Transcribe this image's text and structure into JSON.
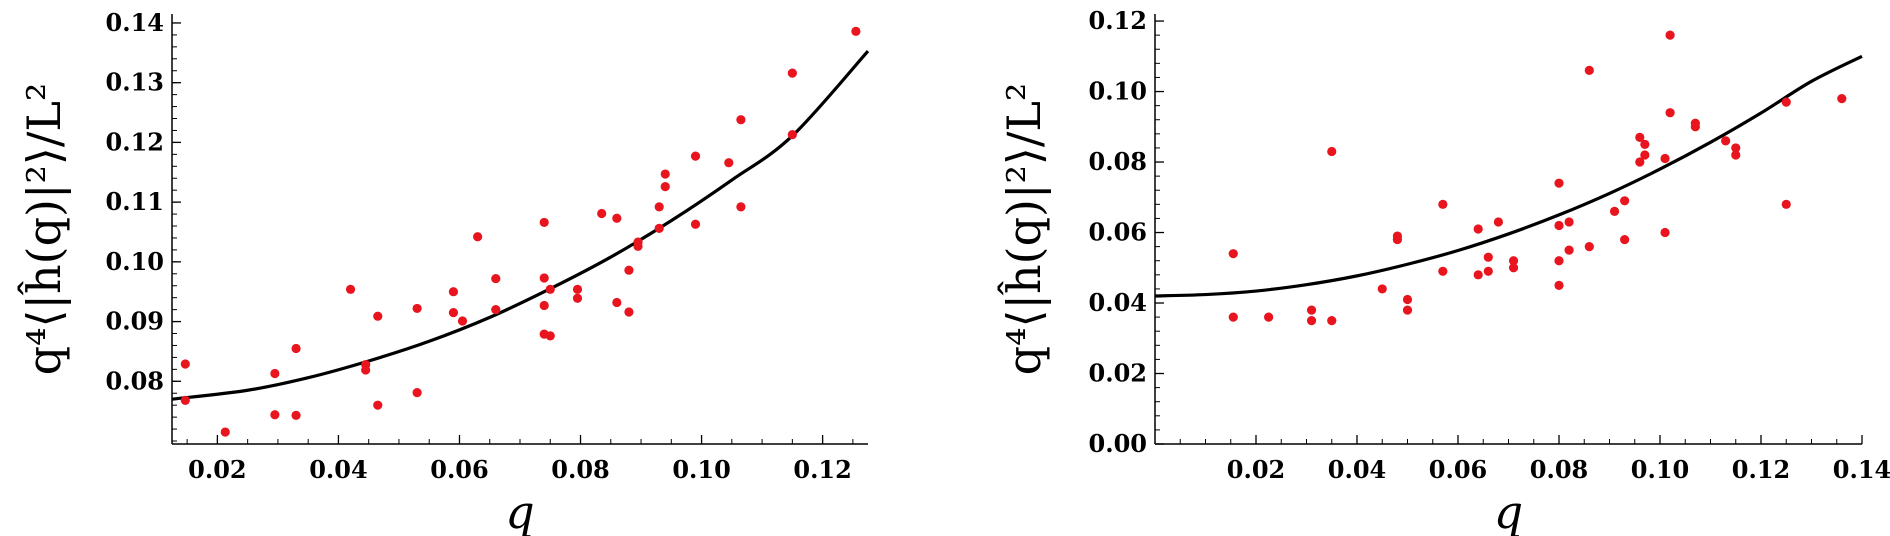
{
  "chart_data": [
    {
      "type": "scatter",
      "xlabel": "q",
      "ylabel": "q⁴⟨|ĥ(q)|²⟩/L²",
      "xlim": [
        0.0125,
        0.1275
      ],
      "ylim": [
        0.0695,
        0.1415
      ],
      "xticks": [
        0.02,
        0.04,
        0.06,
        0.08,
        0.1,
        0.12
      ],
      "xtick_labels": [
        "0.02",
        "0.04",
        "0.06",
        "0.08",
        "0.10",
        "0.12"
      ],
      "yticks": [
        0.08,
        0.09,
        0.1,
        0.11,
        0.12,
        0.13,
        0.14
      ],
      "ytick_labels": [
        "0.08",
        "0.09",
        "0.10",
        "0.11",
        "0.12",
        "0.13",
        "0.14"
      ],
      "point_color": "#e8141e",
      "line_color": "#000000",
      "series": [
        {
          "kind": "points",
          "x": [
            0.0147,
            0.0147,
            0.0213,
            0.0295,
            0.0295,
            0.033,
            0.033,
            0.042,
            0.0445,
            0.0445,
            0.0465,
            0.0465,
            0.053,
            0.053,
            0.059,
            0.059,
            0.0605,
            0.063,
            0.066,
            0.066,
            0.074,
            0.074,
            0.074,
            0.074,
            0.075,
            0.075,
            0.0795,
            0.0795,
            0.0835,
            0.086,
            0.086,
            0.088,
            0.088,
            0.0895,
            0.0895,
            0.093,
            0.093,
            0.094,
            0.094,
            0.099,
            0.099,
            0.1045,
            0.1065,
            0.1065,
            0.115,
            0.115,
            0.1255
          ],
          "y": [
            0.0829,
            0.0768,
            0.0715,
            0.0813,
            0.0744,
            0.0855,
            0.0743,
            0.0954,
            0.0828,
            0.0819,
            0.0909,
            0.076,
            0.0922,
            0.0781,
            0.095,
            0.0915,
            0.0901,
            0.1042,
            0.0972,
            0.092,
            0.1066,
            0.0973,
            0.0927,
            0.0879,
            0.0954,
            0.0876,
            0.0954,
            0.0939,
            0.1081,
            0.1073,
            0.0932,
            0.0986,
            0.0916,
            0.1033,
            0.1026,
            0.1092,
            0.1056,
            0.1147,
            0.1126,
            0.1177,
            0.1063,
            0.1166,
            0.1238,
            0.1092,
            0.1316,
            0.1213,
            0.1386
          ]
        },
        {
          "kind": "fit-line",
          "x": [
            0.0125,
            0.025,
            0.035,
            0.045,
            0.055,
            0.065,
            0.075,
            0.085,
            0.095,
            0.105,
            0.115,
            0.1275
          ],
          "y": [
            0.077,
            0.0785,
            0.0806,
            0.0834,
            0.0867,
            0.0907,
            0.0955,
            0.1008,
            0.1069,
            0.1137,
            0.1211,
            0.1353
          ]
        }
      ]
    },
    {
      "type": "scatter",
      "xlabel": "q",
      "ylabel": "q⁴⟨|ĥ(q)|²⟩/L²",
      "xlim": [
        0.0,
        0.14
      ],
      "ylim": [
        0.0,
        0.122
      ],
      "xticks": [
        0.02,
        0.04,
        0.06,
        0.08,
        0.1,
        0.12,
        0.14
      ],
      "xtick_labels": [
        "0.02",
        "0.04",
        "0.06",
        "0.08",
        "0.10",
        "0.12",
        "0.14"
      ],
      "yticks": [
        0.0,
        0.02,
        0.04,
        0.06,
        0.08,
        0.1,
        0.12
      ],
      "ytick_labels": [
        "0.00",
        "0.02",
        "0.04",
        "0.06",
        "0.08",
        "0.10",
        "0.12"
      ],
      "point_color": "#e8141e",
      "line_color": "#000000",
      "series": [
        {
          "kind": "points",
          "x": [
            0.0155,
            0.0155,
            0.0225,
            0.031,
            0.031,
            0.035,
            0.035,
            0.045,
            0.048,
            0.048,
            0.05,
            0.05,
            0.057,
            0.057,
            0.064,
            0.064,
            0.066,
            0.066,
            0.068,
            0.071,
            0.071,
            0.08,
            0.08,
            0.08,
            0.08,
            0.082,
            0.082,
            0.086,
            0.086,
            0.091,
            0.093,
            0.093,
            0.096,
            0.096,
            0.097,
            0.097,
            0.101,
            0.101,
            0.102,
            0.102,
            0.107,
            0.107,
            0.113,
            0.115,
            0.115,
            0.125,
            0.125,
            0.136
          ],
          "y": [
            0.054,
            0.036,
            0.036,
            0.038,
            0.035,
            0.083,
            0.035,
            0.044,
            0.059,
            0.058,
            0.041,
            0.038,
            0.068,
            0.049,
            0.061,
            0.048,
            0.053,
            0.049,
            0.063,
            0.052,
            0.05,
            0.074,
            0.062,
            0.052,
            0.045,
            0.063,
            0.055,
            0.106,
            0.056,
            0.066,
            0.069,
            0.058,
            0.087,
            0.08,
            0.085,
            0.082,
            0.081,
            0.06,
            0.116,
            0.094,
            0.091,
            0.09,
            0.086,
            0.084,
            0.082,
            0.097,
            0.068,
            0.098
          ]
        },
        {
          "kind": "fit-line",
          "x": [
            0.0,
            0.01,
            0.02,
            0.03,
            0.04,
            0.05,
            0.06,
            0.07,
            0.08,
            0.09,
            0.1,
            0.11,
            0.12,
            0.13,
            0.14
          ],
          "y": [
            0.042,
            0.0424,
            0.0434,
            0.0452,
            0.0477,
            0.051,
            0.0549,
            0.0596,
            0.065,
            0.0711,
            0.078,
            0.0856,
            0.0939,
            0.1029,
            0.11
          ]
        }
      ]
    }
  ]
}
